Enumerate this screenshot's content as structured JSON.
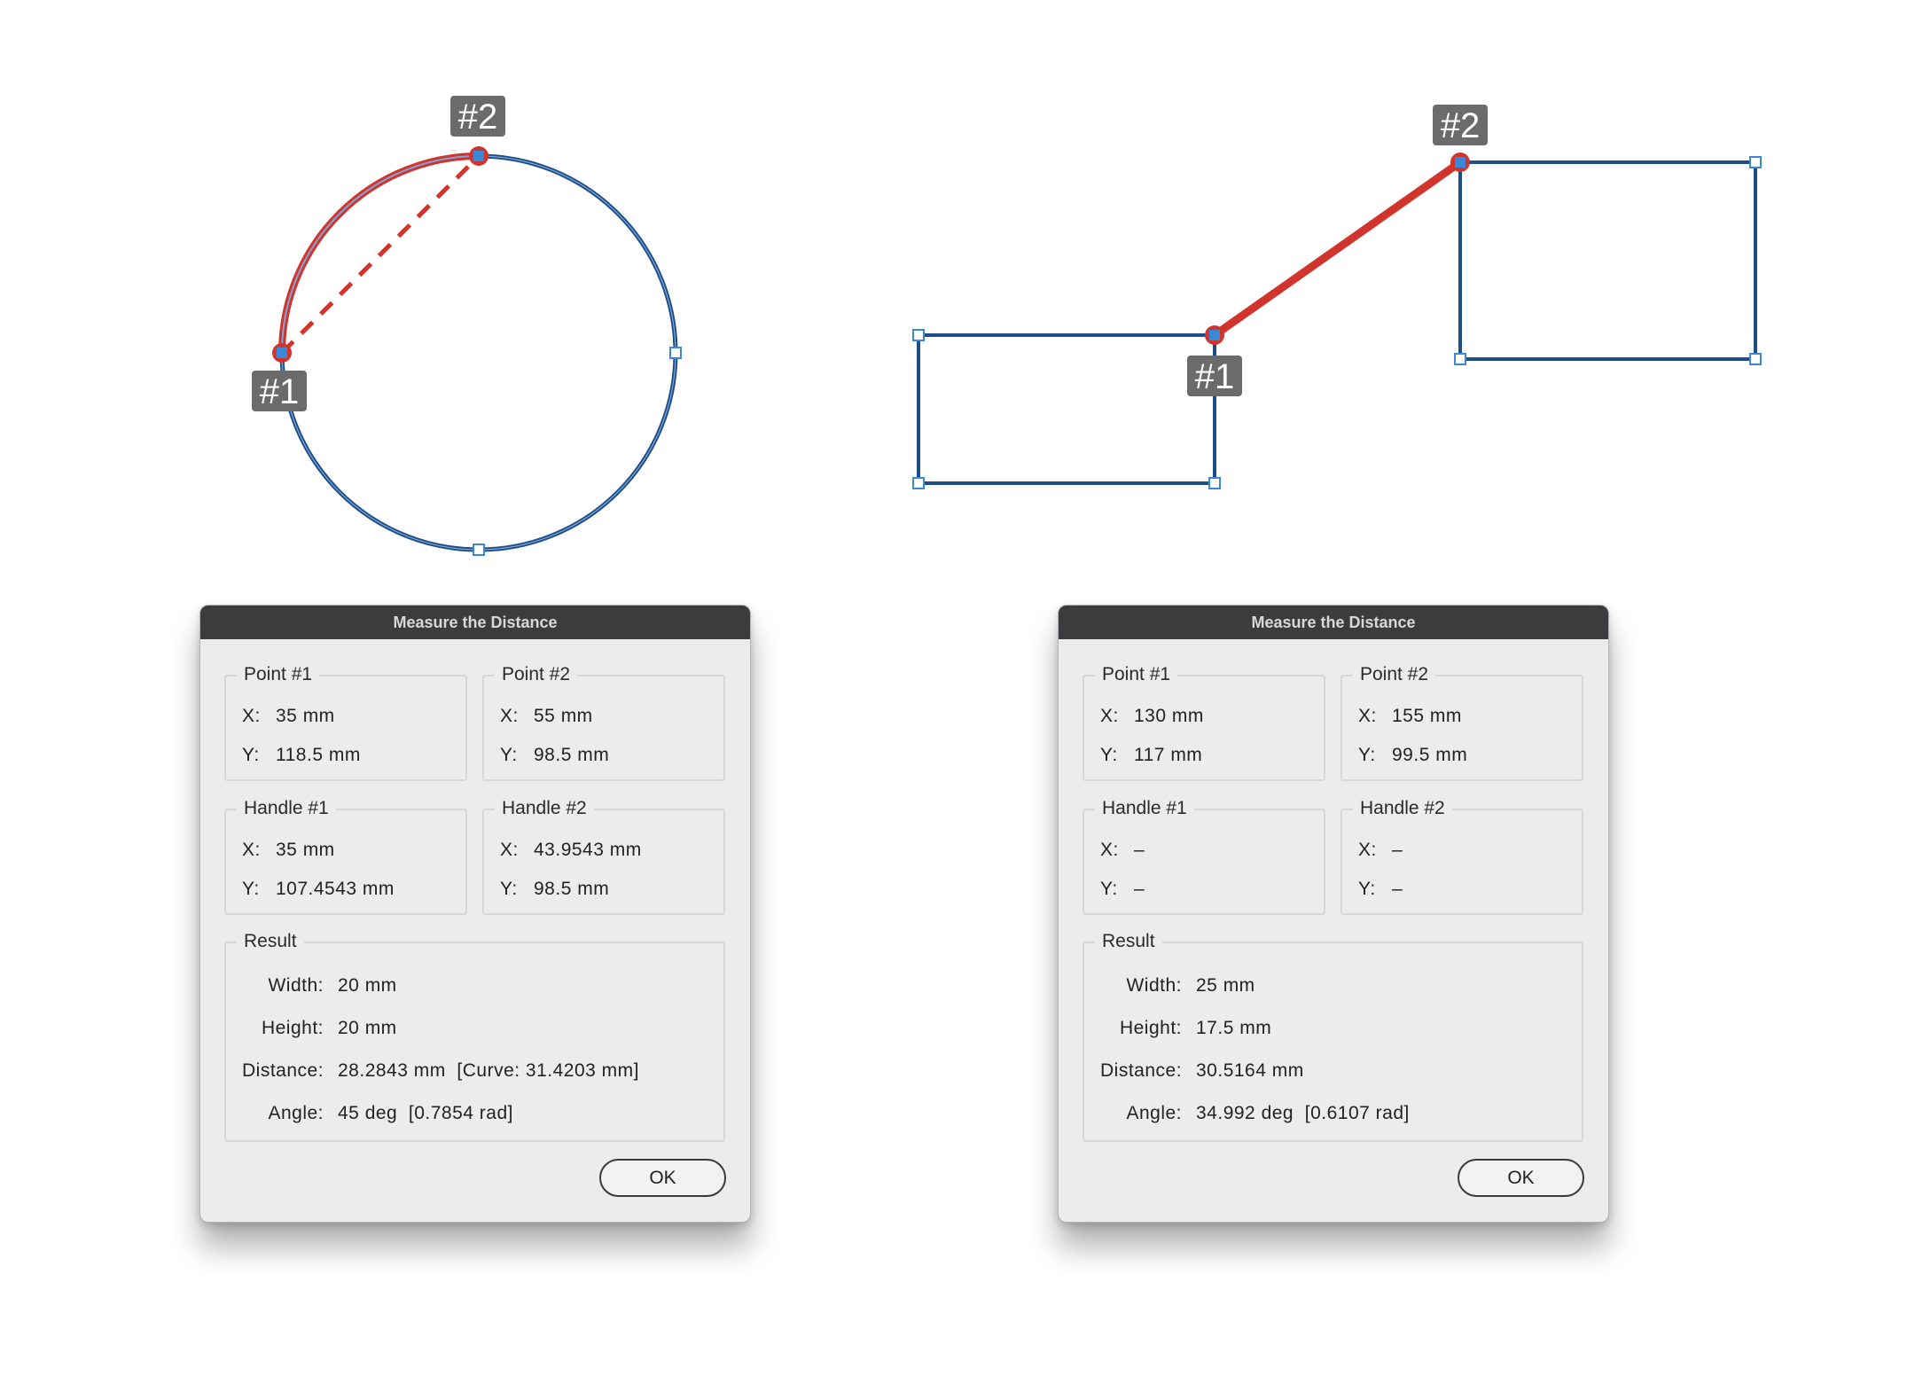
{
  "canvas": {
    "colors": {
      "path": "#1f4e86",
      "highlight_path": "#5c8ed6",
      "measure": "#d0342c",
      "handle": "#3b87d8",
      "tag_bg": "#6b6b6b"
    },
    "left": {
      "tag1": "#1",
      "tag2": "#2"
    },
    "right": {
      "tag1": "#1",
      "tag2": "#2"
    }
  },
  "dialogs": [
    {
      "title": "Measure the Distance",
      "point1": {
        "legend": "Point #1",
        "x_label": "X:",
        "x": "35 mm",
        "y_label": "Y:",
        "y": "118.5 mm"
      },
      "point2": {
        "legend": "Point #2",
        "x_label": "X:",
        "x": "55 mm",
        "y_label": "Y:",
        "y": "98.5 mm"
      },
      "handle1": {
        "legend": "Handle #1",
        "x_label": "X:",
        "x": "35 mm",
        "y_label": "Y:",
        "y": "107.4543 mm"
      },
      "handle2": {
        "legend": "Handle #2",
        "x_label": "X:",
        "x": "43.9543 mm",
        "y_label": "Y:",
        "y": "98.5 mm"
      },
      "result": {
        "legend": "Result",
        "width_label": "Width:",
        "width": "20 mm",
        "height_label": "Height:",
        "height": "20 mm",
        "distance_label": "Distance:",
        "distance": "28.2843 mm  [Curve: 31.4203 mm]",
        "angle_label": "Angle:",
        "angle": "45 deg  [0.7854 rad]"
      },
      "ok_label": "OK"
    },
    {
      "title": "Measure the Distance",
      "point1": {
        "legend": "Point #1",
        "x_label": "X:",
        "x": "130 mm",
        "y_label": "Y:",
        "y": "117 mm"
      },
      "point2": {
        "legend": "Point #2",
        "x_label": "X:",
        "x": "155 mm",
        "y_label": "Y:",
        "y": "99.5 mm"
      },
      "handle1": {
        "legend": "Handle #1",
        "x_label": "X:",
        "x": "–",
        "y_label": "Y:",
        "y": "–"
      },
      "handle2": {
        "legend": "Handle #2",
        "x_label": "X:",
        "x": "–",
        "y_label": "Y:",
        "y": "–"
      },
      "result": {
        "legend": "Result",
        "width_label": "Width:",
        "width": "25 mm",
        "height_label": "Height:",
        "height": "17.5 mm",
        "distance_label": "Distance:",
        "distance": "30.5164 mm",
        "angle_label": "Angle:",
        "angle": "34.992 deg  [0.6107 rad]"
      },
      "ok_label": "OK"
    }
  ]
}
